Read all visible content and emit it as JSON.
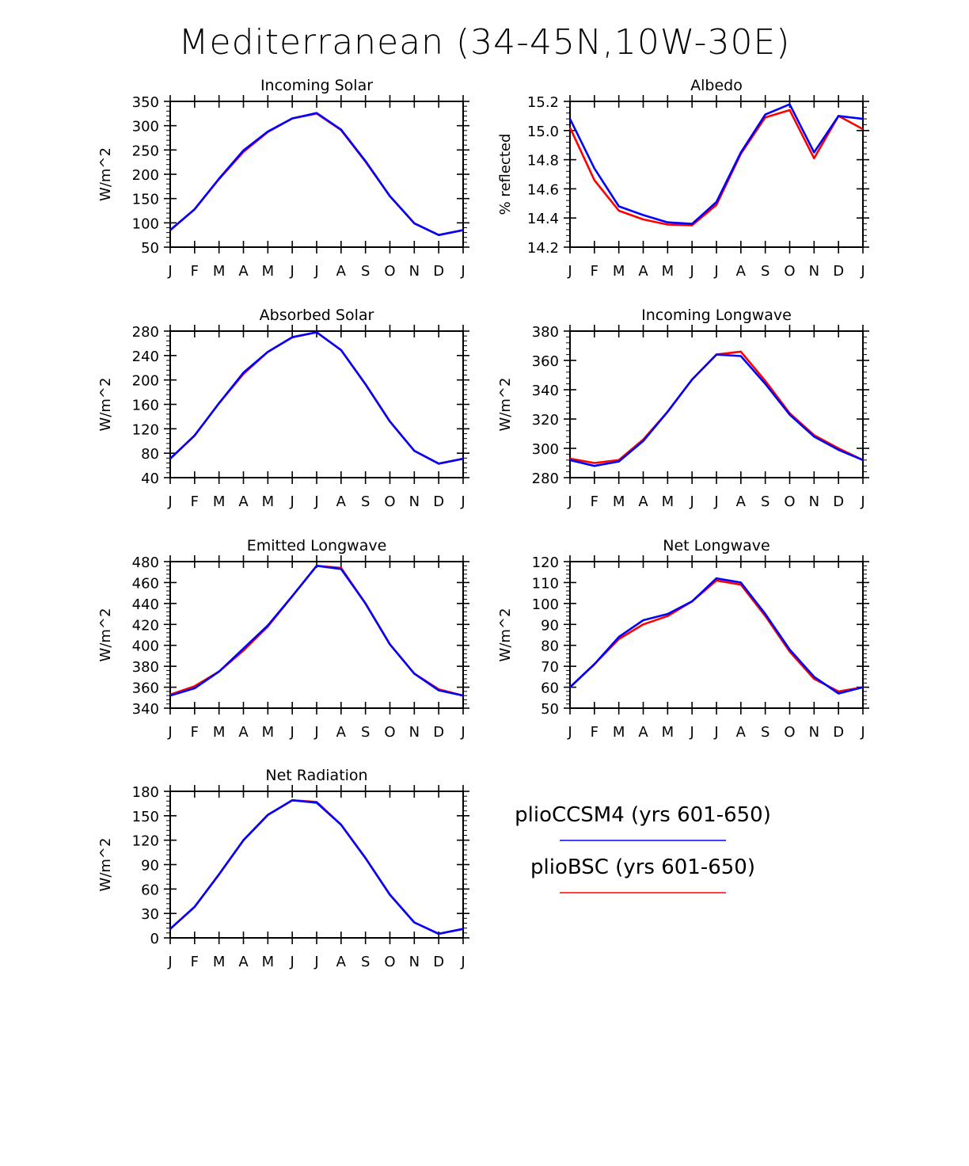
{
  "title": "Mediterranean (34-45N,10W-30E)",
  "colors": {
    "pliocCSM4": "#0000ff",
    "plioBSC": "#ff0000",
    "axis": "#000000"
  },
  "legend": {
    "entries": [
      {
        "label": "plioCCSM4 (yrs 601-650)",
        "color": "#0000ff",
        "key": "ccsm4"
      },
      {
        "label": "plioBSC (yrs 601-650)",
        "color": "#ff0000",
        "key": "bsc"
      }
    ]
  },
  "chart_data": [
    {
      "type": "line",
      "title": "Incoming Solar",
      "ylabel": "W/m^2",
      "categories": [
        "J",
        "F",
        "M",
        "A",
        "M",
        "J",
        "J",
        "A",
        "S",
        "O",
        "N",
        "D",
        "J"
      ],
      "ylim": [
        50,
        350
      ],
      "yticks": [
        50,
        100,
        150,
        200,
        250,
        300,
        350
      ],
      "ytick_labels": [
        "50",
        "100",
        "150",
        "200",
        "250",
        "300",
        "350"
      ],
      "series": [
        {
          "name": "plioBSC (yrs 601-650)",
          "color": "#ff0000",
          "values": [
            85,
            128,
            190,
            246,
            287,
            315,
            325,
            291,
            226,
            155,
            99,
            75,
            85
          ]
        },
        {
          "name": "plioCCSM4 (yrs 601-650)",
          "color": "#0000ff",
          "values": [
            85,
            128,
            191,
            249,
            288,
            315,
            326,
            292,
            227,
            155,
            99,
            75,
            85
          ]
        }
      ]
    },
    {
      "type": "line",
      "title": "Albedo",
      "ylabel": "% reflected",
      "categories": [
        "J",
        "F",
        "M",
        "A",
        "M",
        "J",
        "J",
        "A",
        "S",
        "O",
        "N",
        "D",
        "J"
      ],
      "ylim": [
        14.2,
        15.2
      ],
      "yticks": [
        14.2,
        14.4,
        14.6,
        14.8,
        15.0,
        15.2
      ],
      "ytick_labels": [
        "14.2",
        "14.4",
        "14.6",
        "14.8",
        "15.0",
        "15.2"
      ],
      "series": [
        {
          "name": "plioBSC (yrs 601-650)",
          "color": "#ff0000",
          "values": [
            15.02,
            14.66,
            14.45,
            14.39,
            14.355,
            14.35,
            14.49,
            14.84,
            15.09,
            15.14,
            14.81,
            15.1,
            15.01
          ]
        },
        {
          "name": "plioCCSM4 (yrs 601-650)",
          "color": "#0000ff",
          "values": [
            15.08,
            14.74,
            14.48,
            14.42,
            14.37,
            14.36,
            14.51,
            14.85,
            15.11,
            15.18,
            14.85,
            15.1,
            15.08
          ]
        }
      ]
    },
    {
      "type": "line",
      "title": "Absorbed Solar",
      "ylabel": "W/m^2",
      "categories": [
        "J",
        "F",
        "M",
        "A",
        "M",
        "J",
        "J",
        "A",
        "S",
        "O",
        "N",
        "D",
        "J"
      ],
      "ylim": [
        40,
        280
      ],
      "yticks": [
        40,
        80,
        120,
        160,
        200,
        240,
        280
      ],
      "ytick_labels": [
        "40",
        "80",
        "120",
        "160",
        "200",
        "240",
        "280"
      ],
      "series": [
        {
          "name": "plioBSC (yrs 601-650)",
          "color": "#ff0000",
          "values": [
            71,
            109,
            162,
            210,
            246,
            270,
            278,
            249,
            193,
            132,
            84,
            63,
            71
          ]
        },
        {
          "name": "plioCCSM4 (yrs 601-650)",
          "color": "#0000ff",
          "values": [
            71,
            109,
            162,
            212,
            246,
            270,
            278,
            249,
            193,
            132,
            84,
            63,
            71
          ]
        }
      ]
    },
    {
      "type": "line",
      "title": "Incoming Longwave",
      "ylabel": "W/m^2",
      "categories": [
        "J",
        "F",
        "M",
        "A",
        "M",
        "J",
        "J",
        "A",
        "S",
        "O",
        "N",
        "D",
        "J"
      ],
      "ylim": [
        280,
        380
      ],
      "yticks": [
        280,
        300,
        320,
        340,
        360,
        380
      ],
      "ytick_labels": [
        "280",
        "300",
        "320",
        "340",
        "360",
        "380"
      ],
      "series": [
        {
          "name": "plioBSC (yrs 601-650)",
          "color": "#ff0000",
          "values": [
            293,
            290,
            292,
            306,
            325,
            347,
            364,
            366,
            346,
            324,
            309,
            300,
            292
          ]
        },
        {
          "name": "plioCCSM4 (yrs 601-650)",
          "color": "#0000ff",
          "values": [
            292,
            288,
            291,
            305,
            325,
            347,
            364,
            363,
            344,
            323,
            308,
            299,
            292
          ]
        }
      ]
    },
    {
      "type": "line",
      "title": "Emitted Longwave",
      "ylabel": "W/m^2",
      "categories": [
        "J",
        "F",
        "M",
        "A",
        "M",
        "J",
        "J",
        "A",
        "S",
        "O",
        "N",
        "D",
        "J"
      ],
      "ylim": [
        340,
        480
      ],
      "yticks": [
        340,
        360,
        380,
        400,
        420,
        440,
        460,
        480
      ],
      "ytick_labels": [
        "340",
        "360",
        "380",
        "400",
        "420",
        "440",
        "460",
        "480"
      ],
      "series": [
        {
          "name": "plioBSC (yrs 601-650)",
          "color": "#ff0000",
          "values": [
            353,
            361,
            375,
            395,
            418,
            447,
            476,
            474,
            440,
            401,
            373,
            358,
            352
          ]
        },
        {
          "name": "plioCCSM4 (yrs 601-650)",
          "color": "#0000ff",
          "values": [
            352,
            359,
            375,
            397,
            419,
            447,
            476,
            473,
            440,
            401,
            373,
            357,
            352
          ]
        }
      ]
    },
    {
      "type": "line",
      "title": "Net Longwave",
      "ylabel": "W/m^2",
      "categories": [
        "J",
        "F",
        "M",
        "A",
        "M",
        "J",
        "J",
        "A",
        "S",
        "O",
        "N",
        "D",
        "J"
      ],
      "ylim": [
        50,
        120
      ],
      "yticks": [
        50,
        60,
        70,
        80,
        90,
        100,
        110,
        120
      ],
      "ytick_labels": [
        "50",
        "60",
        "70",
        "80",
        "90",
        "100",
        "110",
        "120"
      ],
      "series": [
        {
          "name": "plioBSC (yrs 601-650)",
          "color": "#ff0000",
          "values": [
            60,
            71,
            83,
            90,
            94,
            101,
            111,
            109,
            94,
            77,
            64,
            58,
            60
          ]
        },
        {
          "name": "plioCCSM4 (yrs 601-650)",
          "color": "#0000ff",
          "values": [
            60,
            71,
            84,
            92,
            95,
            101,
            112,
            110,
            95,
            78,
            65,
            57,
            60
          ]
        }
      ]
    },
    {
      "type": "line",
      "title": "Net Radiation",
      "ylabel": "W/m^2",
      "categories": [
        "J",
        "F",
        "M",
        "A",
        "M",
        "J",
        "J",
        "A",
        "S",
        "O",
        "N",
        "D",
        "J"
      ],
      "ylim": [
        0,
        180
      ],
      "yticks": [
        0,
        30,
        60,
        90,
        120,
        150,
        180
      ],
      "ytick_labels": [
        "0",
        "30",
        "60",
        "90",
        "120",
        "150",
        "180"
      ],
      "series": [
        {
          "name": "plioBSC (yrs 601-650)",
          "color": "#ff0000",
          "values": [
            11,
            38,
            78,
            120,
            151,
            169,
            167,
            139,
            98,
            53,
            19,
            5,
            11
          ]
        },
        {
          "name": "plioCCSM4 (yrs 601-650)",
          "color": "#0000ff",
          "values": [
            11,
            38,
            78,
            120,
            151,
            169,
            166,
            139,
            98,
            53,
            19,
            5,
            11
          ]
        }
      ]
    }
  ]
}
